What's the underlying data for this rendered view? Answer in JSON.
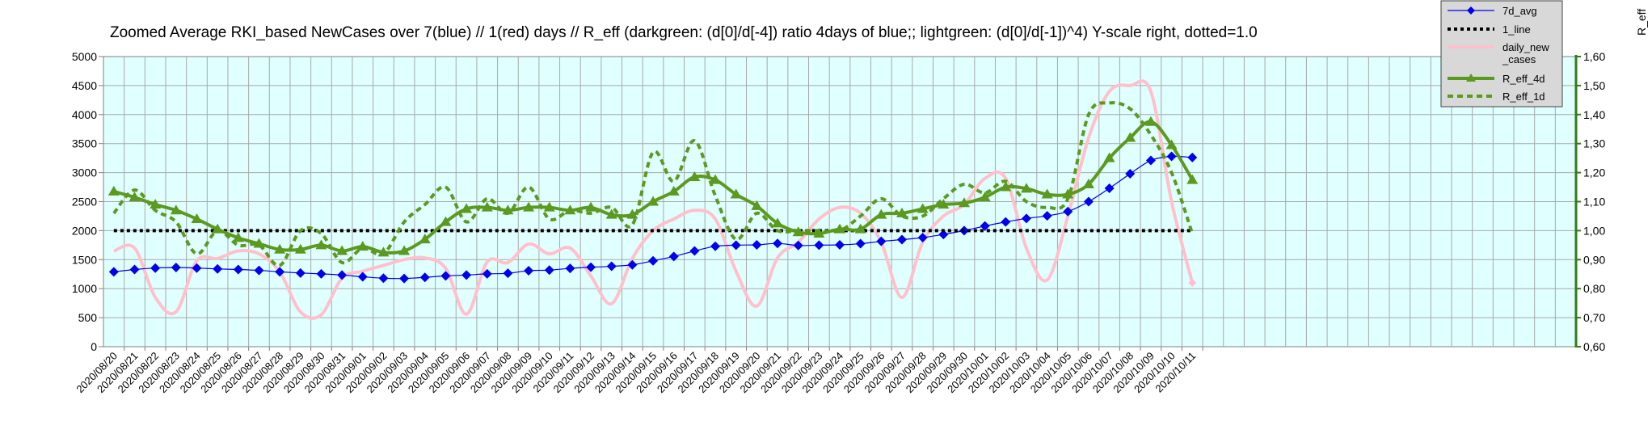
{
  "chart_data": {
    "type": "line",
    "title": "Zoomed Average RKI_based NewCases over 7(blue) // 1(red) days //  R_eff (darkgreen: (d[0]/d[-4]) ratio 4days of blue;; lightgreen: (d[0]/d[-1])^4) Y-scale right, dotted=1.0",
    "right_axis_label": "R_eff",
    "categories": [
      "2020/08/20",
      "2020/08/21",
      "2020/08/22",
      "2020/08/23",
      "2020/08/24",
      "2020/08/25",
      "2020/08/26",
      "2020/08/27",
      "2020/08/28",
      "2020/08/29",
      "2020/08/30",
      "2020/08/31",
      "2020/09/01",
      "2020/09/02",
      "2020/09/03",
      "2020/09/04",
      "2020/09/05",
      "2020/09/06",
      "2020/09/07",
      "2020/09/08",
      "2020/09/09",
      "2020/09/10",
      "2020/09/11",
      "2020/09/12",
      "2020/09/13",
      "2020/09/14",
      "2020/09/15",
      "2020/09/16",
      "2020/09/17",
      "2020/09/18",
      "2020/09/19",
      "2020/09/20",
      "2020/09/21",
      "2020/09/22",
      "2020/09/23",
      "2020/09/24",
      "2020/09/25",
      "2020/09/26",
      "2020/09/27",
      "2020/09/28",
      "2020/09/29",
      "2020/09/30",
      "2020/10/01",
      "2020/10/02",
      "2020/10/03",
      "2020/10/04",
      "2020/10/05",
      "2020/10/06",
      "2020/10/07",
      "2020/10/08",
      "2020/10/09",
      "2020/10/10",
      "2020/10/11"
    ],
    "total_slots": 71,
    "left_axis": {
      "min": 0,
      "max": 5000,
      "ticks": [
        "0",
        "500",
        "1000",
        "1500",
        "2000",
        "2500",
        "3000",
        "3500",
        "4000",
        "4500",
        "5000"
      ]
    },
    "right_axis": {
      "min": 0.6,
      "max": 1.6,
      "ticks": [
        "0,60",
        "0,70",
        "0,80",
        "0,90",
        "1,00",
        "1,10",
        "1,20",
        "1,30",
        "1,40",
        "1,50",
        "1,60"
      ]
    },
    "grid": true,
    "legend_position": "top-right",
    "series": [
      {
        "name": "7d_avg",
        "axis": "left",
        "color": "#0000ee",
        "style": "line-diamond",
        "values": [
          1290,
          1330,
          1355,
          1365,
          1355,
          1340,
          1330,
          1315,
          1290,
          1270,
          1255,
          1235,
          1205,
          1180,
          1175,
          1195,
          1220,
          1235,
          1255,
          1265,
          1310,
          1320,
          1350,
          1370,
          1385,
          1410,
          1480,
          1555,
          1650,
          1730,
          1750,
          1755,
          1780,
          1745,
          1750,
          1755,
          1775,
          1815,
          1845,
          1880,
          1935,
          2000,
          2080,
          2150,
          2210,
          2255,
          2330,
          2500,
          2730,
          2980,
          3210,
          3280,
          3260
        ]
      },
      {
        "name": "1_line",
        "axis": "left",
        "color": "#000000",
        "style": "dotted",
        "values": [
          2000,
          2000,
          2000,
          2000,
          2000,
          2000,
          2000,
          2000,
          2000,
          2000,
          2000,
          2000,
          2000,
          2000,
          2000,
          2000,
          2000,
          2000,
          2000,
          2000,
          2000,
          2000,
          2000,
          2000,
          2000,
          2000,
          2000,
          2000,
          2000,
          2000,
          2000,
          2000,
          2000,
          2000,
          2000,
          2000,
          2000,
          2000,
          2000,
          2000,
          2000,
          2000,
          2000,
          2000,
          2000,
          2000,
          2000,
          2000,
          2000,
          2000,
          2000,
          2000,
          2000
        ]
      },
      {
        "name": "daily_new\n_cases",
        "axis": "left",
        "color": "#ffc0cb",
        "style": "thick",
        "values": [
          1650,
          1700,
          850,
          600,
          1480,
          1520,
          1650,
          1600,
          1290,
          600,
          550,
          1180,
          1300,
          1400,
          1500,
          1530,
          1350,
          560,
          1460,
          1450,
          1770,
          1600,
          1700,
          1220,
          740,
          1520,
          2000,
          2200,
          2350,
          2200,
          1300,
          700,
          1530,
          1800,
          2200,
          2400,
          2300,
          1800,
          850,
          1800,
          2250,
          2450,
          2900,
          2900,
          1700,
          1150,
          2250,
          3600,
          4400,
          4500,
          4400,
          2500,
          1100
        ]
      },
      {
        "name": "R_eff_4d",
        "axis": "right",
        "color": "#5a9a1e",
        "style": "line-triangle",
        "values": [
          1.135,
          1.115,
          1.09,
          1.07,
          1.04,
          1.005,
          0.975,
          0.955,
          0.935,
          0.935,
          0.95,
          0.93,
          0.945,
          0.925,
          0.93,
          0.97,
          1.03,
          1.075,
          1.08,
          1.07,
          1.08,
          1.08,
          1.07,
          1.08,
          1.055,
          1.055,
          1.1,
          1.135,
          1.185,
          1.175,
          1.125,
          1.085,
          1.025,
          0.995,
          0.99,
          1.005,
          1.005,
          1.055,
          1.06,
          1.075,
          1.09,
          1.095,
          1.115,
          1.15,
          1.145,
          1.125,
          1.125,
          1.16,
          1.25,
          1.32,
          1.375,
          1.295,
          1.175
        ]
      },
      {
        "name": "R_eff_1d",
        "axis": "right",
        "color": "#5a9a1e",
        "style": "dashed",
        "values": [
          1.06,
          1.14,
          1.07,
          1.03,
          0.92,
          1.0,
          0.95,
          0.95,
          0.88,
          1.0,
          0.99,
          0.89,
          0.94,
          0.92,
          1.03,
          1.09,
          1.15,
          1.03,
          1.11,
          1.06,
          1.15,
          1.04,
          1.07,
          1.06,
          1.08,
          1.02,
          1.27,
          1.17,
          1.31,
          1.12,
          0.97,
          1.06,
          1.0,
          1.0,
          1.0,
          1.0,
          1.05,
          1.11,
          1.05,
          1.05,
          1.11,
          1.16,
          1.13,
          1.17,
          1.1,
          1.08,
          1.11,
          1.4,
          1.44,
          1.42,
          1.33,
          1.2,
          0.99
        ]
      }
    ]
  }
}
